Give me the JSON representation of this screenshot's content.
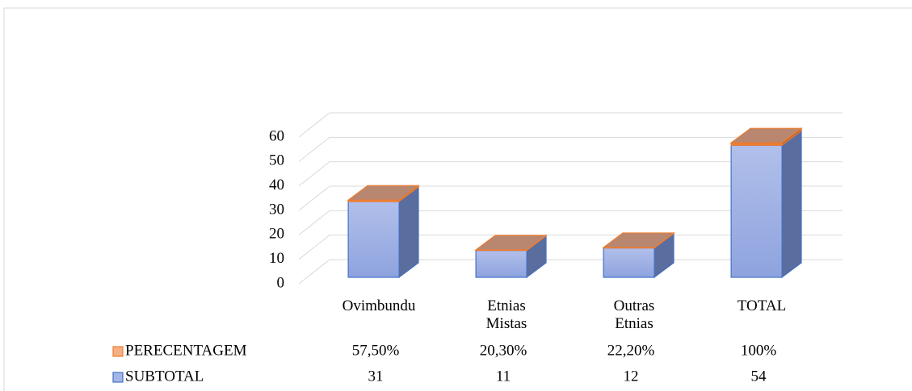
{
  "chart_data": {
    "type": "bar3d_stacked",
    "categories": [
      "Ovimbundu",
      "Etnias Mistas",
      "Outras Etnias",
      "TOTAL"
    ],
    "series": [
      {
        "name": "SUBTOTAL",
        "color": "#8fa5e0",
        "values": [
          31,
          11,
          12,
          54
        ]
      },
      {
        "name": "PERECENTAGEM",
        "color": "#ed7d31",
        "values": [
          0.575,
          0.203,
          0.222,
          1
        ],
        "value_labels": [
          "57,50%",
          "20,30%",
          "22,20%",
          "100%"
        ]
      }
    ],
    "ylim": [
      0,
      60
    ],
    "yticks": [
      0,
      10,
      20,
      30,
      40,
      50,
      60
    ],
    "grid": true,
    "legend": "table"
  }
}
